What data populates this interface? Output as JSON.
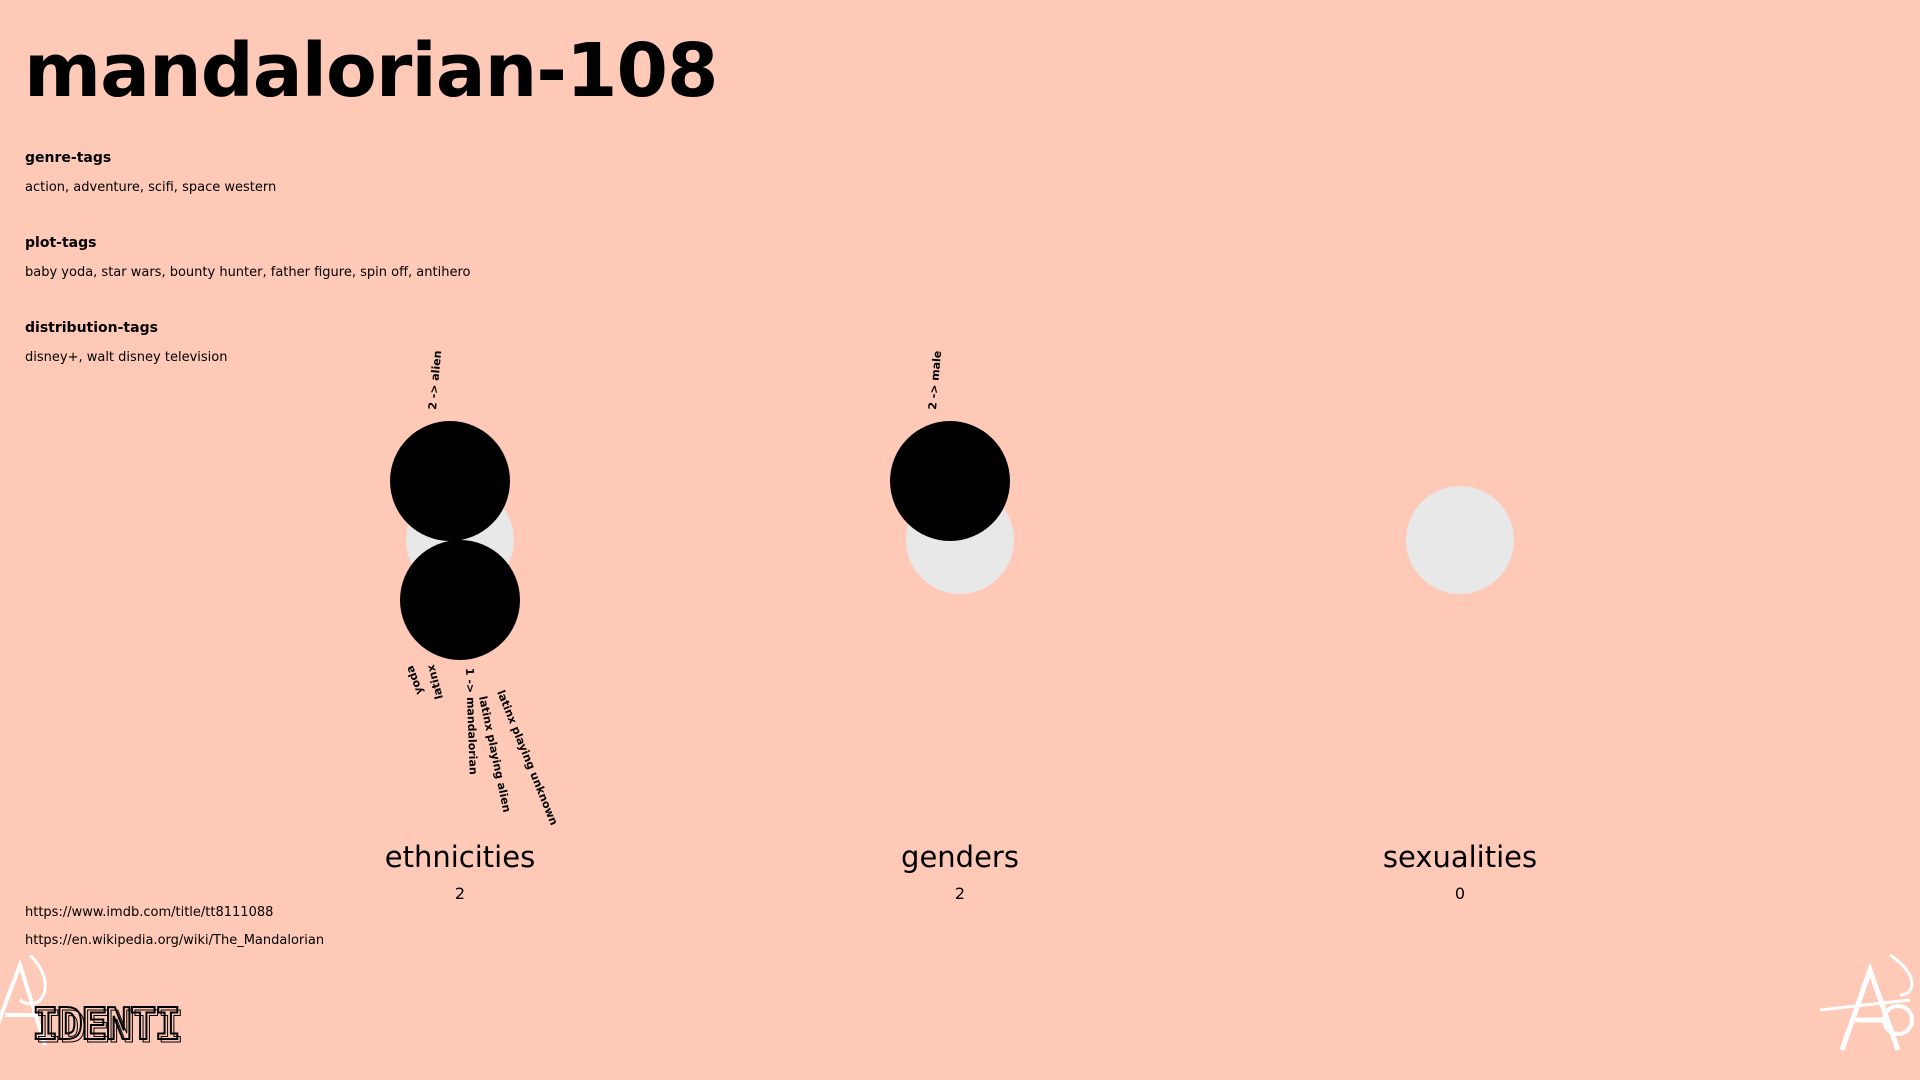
{
  "title": "mandalorian-108",
  "tags": [
    {
      "heading": "genre-tags",
      "values": "action, adventure, scifi, space western"
    },
    {
      "heading": "plot-tags",
      "values": "baby yoda, star wars, bounty hunter, father figure, spin off, antihero"
    },
    {
      "heading": "distribution-tags",
      "values": "disney+, walt disney television"
    }
  ],
  "categories": [
    {
      "label": "ethnicities",
      "count": "2",
      "top_label": "2 -> alien",
      "bottom_labels": [
        "yoda",
        "latinx",
        "1 -> mandalorian",
        "latinx playing alien",
        "latinx playing unknown"
      ]
    },
    {
      "label": "genders",
      "count": "2",
      "top_label": "2 -> male"
    },
    {
      "label": "sexualities",
      "count": "0"
    }
  ],
  "links": [
    "https://www.imdb.com/title/tt8111088",
    "https://en.wikipedia.org/wiki/The_Mandalorian"
  ],
  "logo_text": "IDENTI",
  "colors": {
    "background": "#ffc9b7",
    "filled_circle": "#000000",
    "empty_circle": "#e8e8e8"
  }
}
